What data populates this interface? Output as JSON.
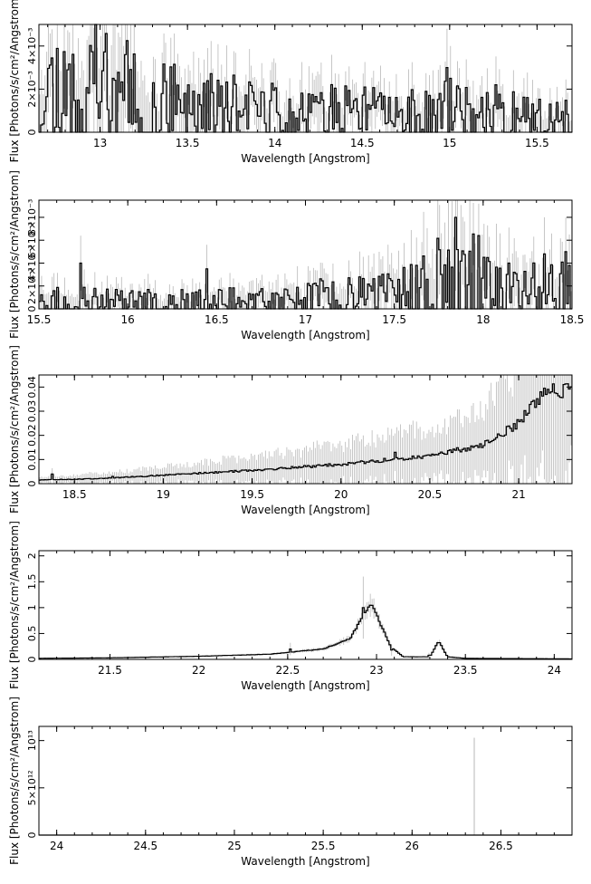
{
  "colors": {
    "frame": "#000000",
    "histogram": "#000000",
    "errorbar": "#b8b8b8",
    "background": "#ffffff"
  },
  "chart_data": [
    {
      "type": "histogram_with_errorbars",
      "xlabel": "Wavelength [Angstrom]",
      "ylabel": "Flux [Photons/s/cm²/Angstrom]",
      "xlim": [
        12.65,
        15.7
      ],
      "ylim": [
        0,
        0.005
      ],
      "xticks": [
        {
          "v": 13,
          "label": "13"
        },
        {
          "v": 13.5,
          "label": "13.5"
        },
        {
          "v": 14,
          "label": "14"
        },
        {
          "v": 14.5,
          "label": "14.5"
        },
        {
          "v": 15,
          "label": "15"
        },
        {
          "v": 15.5,
          "label": "15.5"
        }
      ],
      "yticks": [
        {
          "v": 0,
          "label": "0"
        },
        {
          "v": 0.002,
          "label": "2×10⁻³"
        },
        {
          "v": 0.004,
          "label": "4×10⁻³"
        }
      ],
      "bin_width": 0.01,
      "profile": [
        [
          12.65,
          0.0022
        ],
        [
          12.8,
          0.0025
        ],
        [
          13.0,
          0.003
        ],
        [
          13.15,
          0.0028
        ],
        [
          13.3,
          0.0018
        ],
        [
          13.5,
          0.0016
        ],
        [
          13.7,
          0.0014
        ],
        [
          13.9,
          0.0012
        ],
        [
          14.1,
          0.0012
        ],
        [
          14.4,
          0.0011
        ],
        [
          14.7,
          0.001
        ],
        [
          15.0,
          0.0012
        ],
        [
          15.3,
          0.001
        ],
        [
          15.7,
          0.0008
        ]
      ],
      "noise_fraction": 1.0,
      "error_fraction": 0.9,
      "peaks": [
        [
          13.14,
          0.0036
        ],
        [
          14.99,
          0.003
        ],
        [
          15.01,
          0.0025
        ],
        [
          15.27,
          0.0022
        ]
      ],
      "seed": 11
    },
    {
      "type": "histogram_with_errorbars",
      "xlabel": "Wavelength [Angstrom]",
      "ylabel": "Flux [Photons/s/cm²/Angstrom]",
      "xlim": [
        15.5,
        18.5
      ],
      "ylim": [
        0,
        0.0095
      ],
      "xticks": [
        {
          "v": 15.5,
          "label": "15.5"
        },
        {
          "v": 16,
          "label": "16"
        },
        {
          "v": 16.5,
          "label": "16.5"
        },
        {
          "v": 17,
          "label": "17"
        },
        {
          "v": 17.5,
          "label": "17.5"
        },
        {
          "v": 18,
          "label": "18"
        },
        {
          "v": 18.5,
          "label": "18.5"
        }
      ],
      "yticks": [
        {
          "v": 0,
          "label": "0"
        },
        {
          "v": 0.002,
          "label": "2×10⁻³"
        },
        {
          "v": 0.004,
          "label": "4×10⁻³"
        },
        {
          "v": 0.006,
          "label": "6×10⁻³"
        },
        {
          "v": 0.008,
          "label": "8×10⁻³"
        }
      ],
      "bin_width": 0.01,
      "profile": [
        [
          15.5,
          0.0012
        ],
        [
          16.0,
          0.0009
        ],
        [
          16.5,
          0.001
        ],
        [
          17.0,
          0.0013
        ],
        [
          17.5,
          0.0018
        ],
        [
          17.7,
          0.003
        ],
        [
          17.85,
          0.0045
        ],
        [
          18.0,
          0.0038
        ],
        [
          18.1,
          0.0022
        ],
        [
          18.5,
          0.0022
        ]
      ],
      "noise_fraction": 0.9,
      "error_fraction": 1.1,
      "peaks": [
        [
          15.73,
          0.004
        ],
        [
          16.45,
          0.0035
        ],
        [
          17.63,
          0.0038
        ],
        [
          18.0,
          0.0045
        ],
        [
          18.34,
          0.0048
        ],
        [
          18.47,
          0.005
        ]
      ],
      "seed": 23
    },
    {
      "type": "histogram_with_errorbars",
      "xlabel": "Wavelength [Angstrom]",
      "ylabel": "Flux [Photons/s/cm²/Angstrom]",
      "xlim": [
        18.3,
        21.3
      ],
      "ylim": [
        0,
        0.045
      ],
      "xticks": [
        {
          "v": 18.5,
          "label": "18.5"
        },
        {
          "v": 19,
          "label": "19"
        },
        {
          "v": 19.5,
          "label": "19.5"
        },
        {
          "v": 20,
          "label": "20"
        },
        {
          "v": 20.5,
          "label": "20.5"
        },
        {
          "v": 21,
          "label": "21"
        }
      ],
      "yticks": [
        {
          "v": 0,
          "label": "0"
        },
        {
          "v": 0.01,
          "label": "0.01"
        },
        {
          "v": 0.02,
          "label": "0.02"
        },
        {
          "v": 0.03,
          "label": "0.03"
        },
        {
          "v": 0.04,
          "label": "0.04"
        }
      ],
      "bin_width": 0.01,
      "profile": [
        [
          18.3,
          0.0015
        ],
        [
          18.6,
          0.002
        ],
        [
          19.0,
          0.0035
        ],
        [
          19.5,
          0.0055
        ],
        [
          20.0,
          0.008
        ],
        [
          20.5,
          0.0115
        ],
        [
          20.8,
          0.016
        ],
        [
          21.0,
          0.025
        ],
        [
          21.15,
          0.038
        ],
        [
          21.3,
          0.039
        ]
      ],
      "noise_fraction": 0.08,
      "error_fraction": 1.0,
      "peaks": [
        [
          18.38,
          0.004
        ],
        [
          18.72,
          0.003
        ],
        [
          19.13,
          0.004
        ],
        [
          19.58,
          0.006
        ],
        [
          19.97,
          0.008
        ],
        [
          20.1,
          0.009
        ],
        [
          20.31,
          0.013
        ]
      ],
      "seed": 5
    },
    {
      "type": "histogram_with_errorbars",
      "xlabel": "Wavelength [Angstrom]",
      "ylabel": "Flux [Photons/s/cm²/Angstrom]",
      "xlim": [
        21.1,
        24.1
      ],
      "ylim": [
        0,
        2.1
      ],
      "xticks": [
        {
          "v": 21.5,
          "label": "21.5"
        },
        {
          "v": 22,
          "label": "22"
        },
        {
          "v": 22.5,
          "label": "22.5"
        },
        {
          "v": 23,
          "label": "23"
        },
        {
          "v": 23.5,
          "label": "23.5"
        },
        {
          "v": 24,
          "label": "24"
        }
      ],
      "yticks": [
        {
          "v": 0,
          "label": "0"
        },
        {
          "v": 0.5,
          "label": "0.5"
        },
        {
          "v": 1,
          "label": "1"
        },
        {
          "v": 1.5,
          "label": "1.5"
        },
        {
          "v": 2,
          "label": "2"
        }
      ],
      "bin_width": 0.01,
      "profile": [
        [
          21.1,
          0.02
        ],
        [
          21.5,
          0.03
        ],
        [
          22.0,
          0.06
        ],
        [
          22.4,
          0.1
        ],
        [
          22.7,
          0.2
        ],
        [
          22.85,
          0.4
        ],
        [
          22.92,
          0.8
        ],
        [
          22.97,
          1.1
        ],
        [
          23.02,
          0.7
        ],
        [
          23.08,
          0.25
        ],
        [
          23.15,
          0.05
        ],
        [
          23.3,
          0.05
        ],
        [
          23.35,
          0.35
        ],
        [
          23.4,
          0.05
        ],
        [
          23.5,
          0.02
        ],
        [
          24.1,
          0.01
        ]
      ],
      "noise_fraction": 0.03,
      "error_fraction": 0.15,
      "peaks": [
        [
          22.51,
          0.2
        ],
        [
          22.93,
          1.0
        ],
        [
          23.09,
          0.18
        ],
        [
          23.3,
          0.08
        ]
      ],
      "seed": 7
    },
    {
      "type": "histogram_with_errorbars",
      "xlabel": "Wavelength [Angstrom]",
      "ylabel": "Flux [Photons/s/cm²/Angstrom]",
      "xlim": [
        23.9,
        26.9
      ],
      "ylim": [
        0,
        11500000000000
      ],
      "xticks": [
        {
          "v": 24,
          "label": "24"
        },
        {
          "v": 24.5,
          "label": "24.5"
        },
        {
          "v": 25,
          "label": "25"
        },
        {
          "v": 25.5,
          "label": "25.5"
        },
        {
          "v": 26,
          "label": "26"
        },
        {
          "v": 26.5,
          "label": "26.5"
        }
      ],
      "yticks": [
        {
          "v": 0,
          "label": "0"
        },
        {
          "v": 5000000000000,
          "label": "5×10¹²"
        },
        {
          "v": 10000000000000,
          "label": "10¹³"
        }
      ],
      "bin_width": 0.01,
      "profile": [
        [
          23.9,
          0
        ],
        [
          26.9,
          0
        ]
      ],
      "noise_fraction": 0,
      "error_fraction": 0,
      "peaks": [],
      "spikes": [
        {
          "x": 26.35,
          "err": 10300000000000
        }
      ],
      "seed": 3
    }
  ]
}
